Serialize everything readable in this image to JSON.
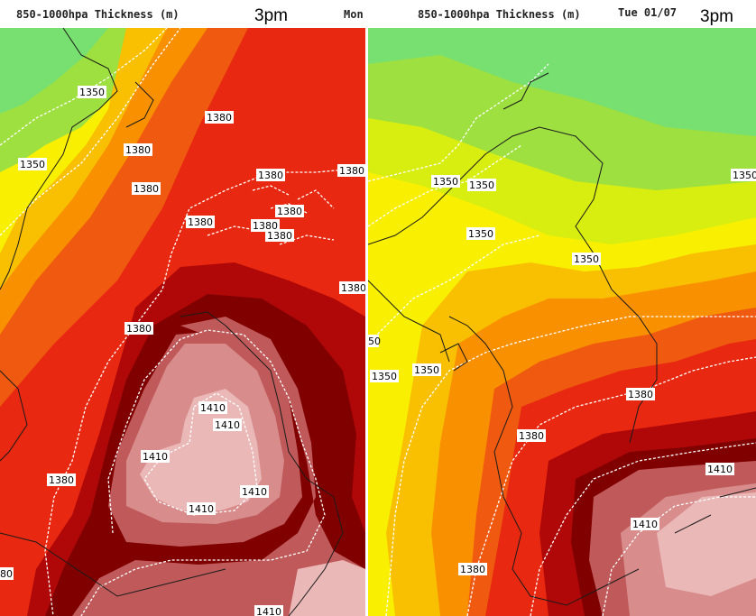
{
  "left_panel": {
    "title": "850-1000hpa Thickness (m)",
    "time": "3pm",
    "day": "Mon",
    "contour_labels": [
      {
        "text": "1350"
      },
      {
        "text": "1350"
      },
      {
        "text": "1380"
      },
      {
        "text": "1380"
      },
      {
        "text": "1380"
      },
      {
        "text": "1380"
      },
      {
        "text": "1380"
      },
      {
        "text": "1380"
      },
      {
        "text": "1380"
      },
      {
        "text": "1380"
      },
      {
        "text": "1380"
      },
      {
        "text": "1380"
      },
      {
        "text": "1380"
      },
      {
        "text": "1410"
      },
      {
        "text": "1410"
      },
      {
        "text": "1410"
      },
      {
        "text": "1410"
      },
      {
        "text": "1410"
      },
      {
        "text": "1410"
      },
      {
        "text": "80"
      }
    ]
  },
  "right_panel": {
    "title": "850-1000hpa Thickness (m)",
    "day": "Tue 01/07",
    "time": "3pm",
    "contour_labels": [
      {
        "text": "1350"
      },
      {
        "text": "1350"
      },
      {
        "text": "1350"
      },
      {
        "text": "1350"
      },
      {
        "text": "1350"
      },
      {
        "text": "1350"
      },
      {
        "text": "1350"
      },
      {
        "text": "50"
      },
      {
        "text": "1380"
      },
      {
        "text": "1380"
      },
      {
        "text": "1380"
      },
      {
        "text": "1410"
      },
      {
        "text": "1410"
      }
    ]
  },
  "colors": {
    "green_light": "#77e070",
    "green": "#9ee040",
    "yellow_green": "#d8ee10",
    "yellow": "#f8f000",
    "orange_yellow": "#f8c000",
    "orange": "#f89000",
    "orange_red": "#f05a10",
    "red": "#e82810",
    "dark_red": "#b00808",
    "maroon": "#800000",
    "rose": "#c05a5a",
    "rose_light": "#d88c8c",
    "pink": "#ebb8b8"
  }
}
